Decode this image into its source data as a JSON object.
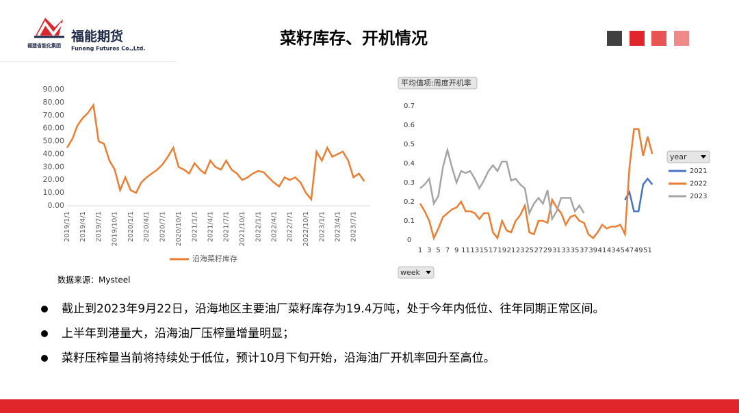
{
  "header": {
    "company": "福能期货",
    "company_en": "Funeng Futures Co.,Ltd.",
    "group": "福建省能化集团",
    "title": "菜籽库存、开机情况"
  },
  "chart_data": [
    {
      "type": "line",
      "x": [
        "2019/1/1",
        "2019/2/1",
        "2019/3/1",
        "2019/4/1",
        "2019/5/1",
        "2019/6/1",
        "2019/7/1",
        "2019/8/1",
        "2019/9/1",
        "2019/10/1",
        "2019/11/1",
        "2019/12/1",
        "2020/1/1",
        "2020/2/1",
        "2020/3/1",
        "2020/4/1",
        "2020/5/1",
        "2020/6/1",
        "2020/7/1",
        "2020/8/1",
        "2020/9/1",
        "2020/10/1",
        "2020/11/1",
        "2020/12/1",
        "2021/1/1",
        "2021/2/1",
        "2021/3/1",
        "2021/4/1",
        "2021/5/1",
        "2021/6/1",
        "2021/7/1",
        "2021/8/1",
        "2021/9/1",
        "2021/10/1",
        "2021/11/1",
        "2021/12/1",
        "2022/1/1",
        "2022/2/1",
        "2022/3/1",
        "2022/4/1",
        "2022/5/1",
        "2022/6/1",
        "2022/7/1",
        "2022/8/1",
        "2022/9/1",
        "2022/10/1",
        "2022/11/1",
        "2022/12/1",
        "2023/1/1",
        "2023/2/1",
        "2023/3/1",
        "2023/4/1",
        "2023/5/1",
        "2023/6/1",
        "2023/7/1",
        "2023/8/1",
        "2023/9/1"
      ],
      "series": [
        {
          "name": "沿海菜籽库存",
          "color": "#ed7d31",
          "values": [
            45,
            52,
            62,
            68,
            72,
            78,
            50,
            48,
            35,
            28,
            12,
            22,
            12,
            10,
            18,
            22,
            25,
            28,
            32,
            38,
            45,
            30,
            28,
            25,
            33,
            28,
            25,
            35,
            30,
            28,
            35,
            28,
            25,
            20,
            22,
            25,
            27,
            26,
            22,
            18,
            15,
            22,
            20,
            22,
            18,
            10,
            5,
            42,
            35,
            45,
            38,
            40,
            42,
            35,
            22,
            25,
            19
          ]
        }
      ],
      "xlim": [
        "2019/1/1",
        "2023/10/1"
      ],
      "xticks": [
        "2019/1/1",
        "2019/4/1",
        "2019/7/1",
        "2019/10/1",
        "2020/1/1",
        "2020/4/1",
        "2020/7/1",
        "2020/10/1",
        "2021/1/1",
        "2021/4/1",
        "2021/7/1",
        "2021/10/1",
        "2022/1/1",
        "2022/4/1",
        "2022/7/1",
        "2022/10/1",
        "2023/1/1",
        "2023/4/1",
        "2023/7/1"
      ],
      "ylim": [
        0,
        90
      ],
      "yticks": [
        {
          "value": 0,
          "label": "0.00"
        },
        {
          "value": 10,
          "label": "10.00"
        },
        {
          "value": 20,
          "label": "20.00"
        },
        {
          "value": 30,
          "label": "30.00"
        },
        {
          "value": 40,
          "label": "40.00"
        },
        {
          "value": 50,
          "label": "50.00"
        },
        {
          "value": 60,
          "label": "60.00"
        },
        {
          "value": 70,
          "label": "70.00"
        },
        {
          "value": 80,
          "label": "80.00"
        },
        {
          "value": 90,
          "label": "90.00"
        }
      ],
      "source": "数据来源：Mysteel"
    },
    {
      "type": "line",
      "y_label": "平均值项:周度开机率",
      "x_label": "week",
      "legend_title": "year",
      "categories": [
        1,
        null,
        3,
        null,
        5,
        null,
        7,
        null,
        9,
        null,
        11,
        null,
        13,
        null,
        15,
        null,
        17,
        null,
        19,
        null,
        21,
        null,
        23,
        null,
        25,
        null,
        27,
        null,
        29,
        null,
        31,
        null,
        33,
        null,
        35,
        null,
        37,
        null,
        39,
        null,
        41,
        null,
        43,
        null,
        45,
        null,
        47,
        null,
        49,
        null,
        51,
        null
      ],
      "series": [
        {
          "name": "2021",
          "color": "#4472c4",
          "values": [
            null,
            null,
            null,
            null,
            null,
            null,
            null,
            null,
            null,
            null,
            null,
            null,
            null,
            null,
            null,
            null,
            null,
            null,
            null,
            null,
            null,
            null,
            null,
            null,
            null,
            null,
            null,
            null,
            null,
            null,
            null,
            null,
            null,
            null,
            null,
            null,
            null,
            null,
            null,
            null,
            null,
            null,
            null,
            null,
            null,
            0.21,
            0.25,
            0.15,
            0.15,
            0.29,
            0.32,
            0.29
          ]
        },
        {
          "name": "2022",
          "color": "#ed7d31",
          "values": [
            0.19,
            0.15,
            0.1,
            0.01,
            0.06,
            0.12,
            0.14,
            0.16,
            0.17,
            0.2,
            0.15,
            0.15,
            0.14,
            0.11,
            0.14,
            0.14,
            0.04,
            0.01,
            0.1,
            0.05,
            0.04,
            0.1,
            0.13,
            0.18,
            0.04,
            0.03,
            0.1,
            0.1,
            0.09,
            0.21,
            0.17,
            0.14,
            0.08,
            0.12,
            0.13,
            0.1,
            0.09,
            0.03,
            0.01,
            0.04,
            0.08,
            0.06,
            0.07,
            0.07,
            0.08,
            0.03,
            0.38,
            0.58,
            0.58,
            0.44,
            0.54,
            0.45
          ]
        },
        {
          "name": "2023",
          "color": "#a5a5a5",
          "values": [
            0.27,
            0.29,
            0.32,
            0.19,
            0.23,
            0.38,
            0.47,
            0.38,
            0.3,
            0.36,
            0.35,
            0.36,
            0.32,
            0.27,
            0.31,
            0.36,
            0.39,
            0.36,
            0.41,
            0.41,
            0.31,
            0.32,
            0.29,
            0.27,
            0.14,
            0.19,
            0.22,
            0.19,
            0.26,
            0.11,
            0.15,
            0.22,
            0.22,
            0.22,
            0.15,
            0.18,
            0.14,
            null,
            null,
            null,
            null,
            null,
            null,
            null,
            null,
            null,
            null,
            null,
            null,
            null,
            null,
            null
          ]
        }
      ],
      "ylim": [
        0,
        0.7
      ],
      "yticks": [
        0,
        0.1,
        0.2,
        0.3,
        0.4,
        0.5,
        0.6,
        0.7
      ]
    }
  ],
  "bullets": [
    "截止到2023年9月22日，沿海地区主要油厂菜籽库存为19.4万吨，处于今年内低位、往年同期正常区间。",
    "上半年到港量大，沿海油厂压榨量增量明显；",
    "菜籽压榨量当前将持续处于低位，预计10月下旬开始，沿海油厂开机率回升至高位。"
  ]
}
